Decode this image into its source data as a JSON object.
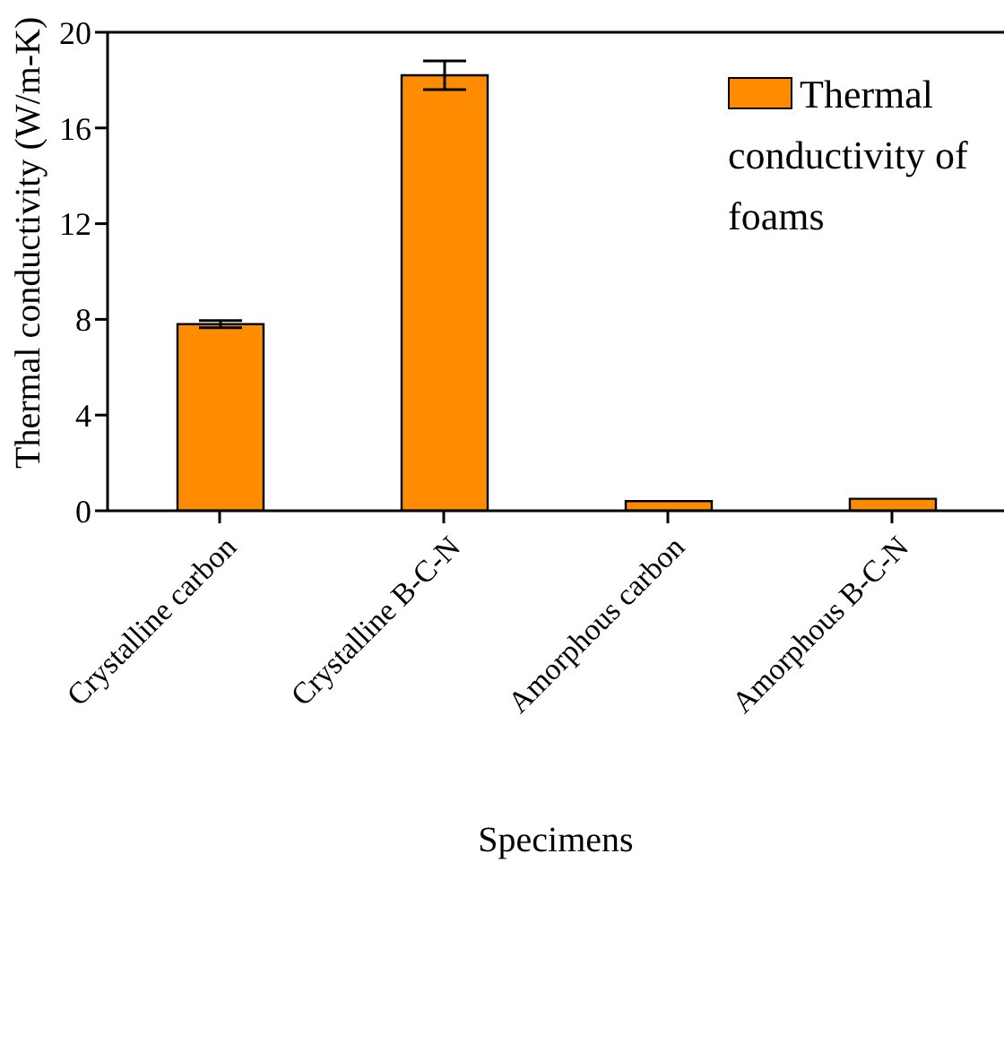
{
  "chart_data": {
    "type": "bar",
    "xlabel": "Specimens",
    "ylabel": "Thermal conductivity (W/m-K)",
    "categories": [
      "Crystalline carbon",
      "Crystalline B-C-N",
      "Amorphous carbon",
      "Amorphous B-C-N"
    ],
    "series": [
      {
        "name": "Thermal conductivity of foams",
        "color": "#ff8c00",
        "values": [
          7.8,
          18.2,
          0.4,
          0.5
        ],
        "errors": [
          0.15,
          0.6,
          null,
          null
        ]
      }
    ],
    "ylim": [
      0,
      20
    ],
    "yticks": [
      0,
      4,
      8,
      12,
      16,
      20
    ],
    "grid": false,
    "legend": "top right"
  }
}
